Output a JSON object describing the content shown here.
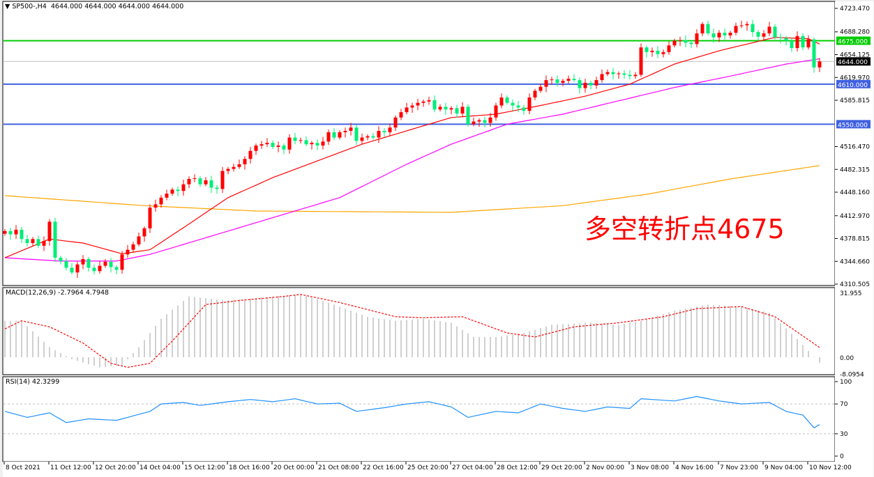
{
  "window": {
    "symbol_header": "▼ SP500-,H4  4644.000 4644.000 4644.000 4644.000",
    "macd_header": "MACD(12,26,9) -2.7964 4.7948",
    "rsi_header": "RSI(14) 42.3299",
    "annotation": "多空转折点4675"
  },
  "colors": {
    "bull": "#ff0000",
    "bear": "#00ee77",
    "ma_fast": "#ff0000",
    "ma_mid": "#ff00ff",
    "ma_slow": "#ffa500",
    "level_green": "#00cc00",
    "level_blue": "#4060e0",
    "rsi": "#1e90ff",
    "macd_hist": "#c0c0c0",
    "macd_signal": "#ff0000"
  },
  "chart_data": [
    {
      "type": "candlestick",
      "symbol": "SP500-",
      "timeframe": "H4",
      "ylim": [
        4310.505,
        4723.47
      ],
      "price_ticks": [
        "4723.470",
        "4688.280",
        "4654.125",
        "4619.970",
        "4585.815",
        "4516.470",
        "4482.315",
        "4448.160",
        "4412.970",
        "4378.815",
        "4344.660",
        "4310.505"
      ],
      "time_labels": [
        "8 Oct 2021",
        "11 Oct 12:00",
        "12 Oct 20:00",
        "14 Oct 04:00",
        "15 Oct 12:00",
        "18 Oct 16:00",
        "20 Oct 00:00",
        "21 Oct 08:00",
        "22 Oct 16:00",
        "25 Oct 20:00",
        "27 Oct 04:00",
        "28 Oct 12:00",
        "29 Oct 20:00",
        "2 Nov 00:00",
        "3 Nov 08:00",
        "4 Nov 16:00",
        "7 Nov 23:00",
        "9 Nov 04:00",
        "10 Nov 12:00"
      ],
      "first_open": 4386,
      "closes": [
        4390,
        4385,
        4392,
        4378,
        4372,
        4378,
        4368,
        4375,
        4404,
        4350,
        4345,
        4335,
        4328,
        4340,
        4348,
        4335,
        4330,
        4338,
        4344,
        4336,
        4332,
        4355,
        4362,
        4370,
        4382,
        4394,
        4425,
        4430,
        4440,
        4446,
        4452,
        4450,
        4460,
        4468,
        4469,
        4460,
        4466,
        4455,
        4453,
        4480,
        4483,
        4486,
        4490,
        4498,
        4510,
        4518,
        4520,
        4522,
        4516,
        4518,
        4512,
        4530,
        4525,
        4526,
        4520,
        4522,
        4518,
        4524,
        4538,
        4530,
        4538,
        4540,
        4545,
        4525,
        4530,
        4532,
        4530,
        4540,
        4538,
        4545,
        4560,
        4568,
        4575,
        4578,
        4582,
        4584,
        4586,
        4572,
        4576,
        4572,
        4574,
        4566,
        4576,
        4550,
        4554,
        4556,
        4552,
        4560,
        4578,
        4590,
        4582,
        4578,
        4575,
        4570,
        4590,
        4600,
        4606,
        4616,
        4617,
        4612,
        4615,
        4618,
        4616,
        4604,
        4612,
        4608,
        4616,
        4625,
        4628,
        4625,
        4626,
        4624,
        4622,
        4624,
        4665,
        4658,
        4660,
        4655,
        4658,
        4668,
        4675,
        4676,
        4672,
        4670,
        4686,
        4700,
        4686,
        4680,
        4687,
        4683,
        4687,
        4697,
        4698,
        4700,
        4688,
        4681,
        4686,
        4696,
        4680,
        4679,
        4675,
        4664,
        4682,
        4665,
        4677,
        4635,
        4644
      ],
      "levels": [
        {
          "label": "4675.000",
          "value": 4675,
          "color": "#00cc00"
        },
        {
          "label": "4644.000",
          "value": 4644,
          "color": "#000000"
        },
        {
          "label": "4610.000",
          "value": 4610,
          "color": "#4060e0"
        },
        {
          "label": "4550.000",
          "value": 4550,
          "color": "#4060e0"
        }
      ],
      "ma_fast": [
        [
          0,
          4350
        ],
        [
          8,
          4378
        ],
        [
          14,
          4372
        ],
        [
          21,
          4356
        ],
        [
          26,
          4362
        ],
        [
          32,
          4395
        ],
        [
          40,
          4440
        ],
        [
          48,
          4470
        ],
        [
          56,
          4495
        ],
        [
          64,
          4520
        ],
        [
          72,
          4540
        ],
        [
          80,
          4560
        ],
        [
          88,
          4565
        ],
        [
          96,
          4578
        ],
        [
          104,
          4592
        ],
        [
          112,
          4610
        ],
        [
          120,
          4640
        ],
        [
          128,
          4660
        ],
        [
          134,
          4672
        ],
        [
          138,
          4680
        ],
        [
          144,
          4678
        ],
        [
          146,
          4670
        ]
      ],
      "ma_mid": [
        [
          0,
          4350
        ],
        [
          10,
          4345
        ],
        [
          20,
          4345
        ],
        [
          26,
          4355
        ],
        [
          36,
          4380
        ],
        [
          48,
          4410
        ],
        [
          60,
          4440
        ],
        [
          72,
          4490
        ],
        [
          80,
          4520
        ],
        [
          90,
          4550
        ],
        [
          100,
          4565
        ],
        [
          110,
          4585
        ],
        [
          120,
          4605
        ],
        [
          130,
          4622
        ],
        [
          140,
          4640
        ],
        [
          146,
          4648
        ]
      ],
      "ma_slow": [
        [
          0,
          4443
        ],
        [
          25,
          4428
        ],
        [
          45,
          4420
        ],
        [
          80,
          4418
        ],
        [
          100,
          4428
        ],
        [
          115,
          4445
        ],
        [
          130,
          4468
        ],
        [
          146,
          4488
        ]
      ]
    },
    {
      "type": "bar",
      "name": "MACD(12,26,9)",
      "ticks": [
        "31.955",
        "0.00",
        "-8.0954"
      ],
      "ylim": [
        -8.0954,
        31.955
      ],
      "main": [
        [
          0,
          18
        ],
        [
          3,
          18
        ],
        [
          8,
          5
        ],
        [
          12,
          -1
        ],
        [
          17,
          -5
        ],
        [
          21,
          -4
        ],
        [
          24,
          5
        ],
        [
          28,
          19
        ],
        [
          33,
          30
        ],
        [
          40,
          28
        ],
        [
          48,
          30
        ],
        [
          53,
          31
        ],
        [
          58,
          27
        ],
        [
          65,
          20
        ],
        [
          70,
          18
        ],
        [
          75,
          19
        ],
        [
          80,
          17
        ],
        [
          84,
          10
        ],
        [
          88,
          10
        ],
        [
          93,
          12
        ],
        [
          98,
          16
        ],
        [
          105,
          17
        ],
        [
          110,
          16
        ],
        [
          114,
          18
        ],
        [
          120,
          23
        ],
        [
          126,
          26
        ],
        [
          132,
          25
        ],
        [
          137,
          22
        ],
        [
          142,
          9
        ],
        [
          146,
          -2.7964
        ]
      ],
      "signal": [
        [
          0,
          14
        ],
        [
          3,
          18
        ],
        [
          8,
          15
        ],
        [
          14,
          7
        ],
        [
          19,
          -3
        ],
        [
          22,
          -5
        ],
        [
          26,
          -3
        ],
        [
          30,
          8
        ],
        [
          36,
          26
        ],
        [
          42,
          28
        ],
        [
          50,
          30
        ],
        [
          53,
          31
        ],
        [
          60,
          27
        ],
        [
          70,
          20
        ],
        [
          75,
          19.5
        ],
        [
          82,
          20
        ],
        [
          90,
          12
        ],
        [
          95,
          10
        ],
        [
          102,
          15
        ],
        [
          110,
          17
        ],
        [
          118,
          20
        ],
        [
          124,
          24
        ],
        [
          132,
          25
        ],
        [
          138,
          20
        ],
        [
          146,
          4.7948
        ]
      ]
    },
    {
      "type": "line",
      "name": "RSI(14)",
      "ticks": [
        "100",
        "70",
        "30",
        "0"
      ],
      "ylim": [
        0,
        100
      ],
      "levels": [
        70,
        30
      ],
      "values": [
        [
          0,
          60
        ],
        [
          4,
          52
        ],
        [
          8,
          58
        ],
        [
          11,
          45
        ],
        [
          15,
          50
        ],
        [
          20,
          48
        ],
        [
          26,
          60
        ],
        [
          28,
          70
        ],
        [
          32,
          72
        ],
        [
          35,
          68
        ],
        [
          40,
          73
        ],
        [
          44,
          76
        ],
        [
          48,
          73
        ],
        [
          52,
          77
        ],
        [
          56,
          70
        ],
        [
          60,
          71
        ],
        [
          63,
          60
        ],
        [
          68,
          65
        ],
        [
          72,
          70
        ],
        [
          76,
          73
        ],
        [
          80,
          66
        ],
        [
          83,
          52
        ],
        [
          88,
          60
        ],
        [
          92,
          58
        ],
        [
          96,
          70
        ],
        [
          100,
          64
        ],
        [
          104,
          60
        ],
        [
          108,
          66
        ],
        [
          112,
          64
        ],
        [
          114,
          77
        ],
        [
          120,
          74
        ],
        [
          124,
          80
        ],
        [
          128,
          74
        ],
        [
          132,
          70
        ],
        [
          137,
          72
        ],
        [
          140,
          60
        ],
        [
          143,
          55
        ],
        [
          145,
          38
        ],
        [
          146,
          42.3299
        ]
      ]
    }
  ]
}
